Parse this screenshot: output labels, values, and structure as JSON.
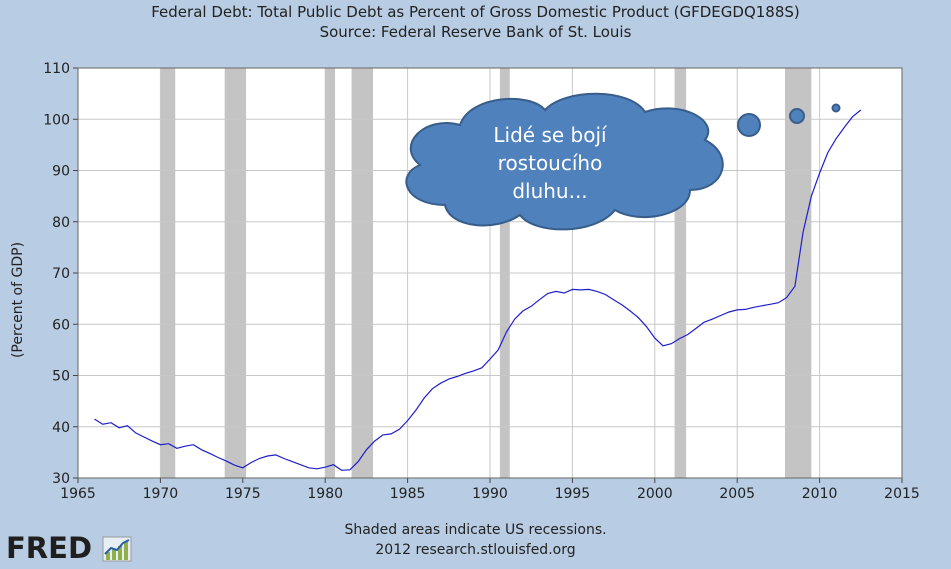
{
  "chart_data": {
    "type": "line",
    "title": "Federal Debt: Total Public Debt as Percent of Gross Domestic Product (GFDEGDQ188S)",
    "subtitle": "Source: Federal Reserve Bank of St. Louis",
    "ylabel": "(Percent of GDP)",
    "xlabel": "",
    "xlim": [
      1965,
      2015
    ],
    "ylim": [
      30,
      110
    ],
    "xticks": [
      1965,
      1970,
      1975,
      1980,
      1985,
      1990,
      1995,
      2000,
      2005,
      2010,
      2015
    ],
    "yticks": [
      30,
      40,
      50,
      60,
      70,
      80,
      90,
      100,
      110
    ],
    "grid": true,
    "line_color": "#1f1fcc",
    "recession_color": "#c4c4c4",
    "recessions": [
      [
        1970.0,
        1970.9
      ],
      [
        1973.9,
        1975.2
      ],
      [
        1980.0,
        1980.6
      ],
      [
        1981.6,
        1982.9
      ],
      [
        1990.6,
        1991.2
      ],
      [
        2001.2,
        2001.9
      ],
      [
        2007.9,
        2009.5
      ]
    ],
    "series": [
      {
        "x": [
          1966.0,
          1966.5,
          1967.0,
          1967.5,
          1968.0,
          1968.5,
          1969.0,
          1969.5,
          1970.0,
          1970.5,
          1971.0,
          1971.5,
          1972.0,
          1972.5,
          1973.0,
          1973.5,
          1974.0,
          1974.5,
          1975.0,
          1975.5,
          1976.0,
          1976.5,
          1977.0,
          1977.5,
          1978.0,
          1978.5,
          1979.0,
          1979.5,
          1980.0,
          1980.5,
          1981.0,
          1981.5,
          1982.0,
          1982.5,
          1983.0,
          1983.5,
          1984.0,
          1984.5,
          1985.0,
          1985.5,
          1986.0,
          1986.5,
          1987.0,
          1987.5,
          1988.0,
          1988.5,
          1989.0,
          1989.5,
          1990.0,
          1990.5,
          1991.0,
          1991.5,
          1992.0,
          1992.5,
          1993.0,
          1993.5,
          1994.0,
          1994.5,
          1995.0,
          1995.5,
          1996.0,
          1996.5,
          1997.0,
          1997.5,
          1998.0,
          1998.5,
          1999.0,
          1999.5,
          2000.0,
          2000.5,
          2001.0,
          2001.5,
          2002.0,
          2002.5,
          2003.0,
          2003.5,
          2004.0,
          2004.5,
          2005.0,
          2005.5,
          2006.0,
          2006.5,
          2007.0,
          2007.5,
          2008.0,
          2008.5,
          2009.0,
          2009.5,
          2010.0,
          2010.5,
          2011.0,
          2011.5,
          2012.0,
          2012.5
        ],
        "values": [
          41.5,
          40.5,
          40.8,
          39.8,
          40.2,
          38.8,
          38.0,
          37.2,
          36.5,
          36.7,
          35.8,
          36.2,
          36.5,
          35.5,
          34.8,
          34.0,
          33.3,
          32.5,
          32.0,
          33.0,
          33.8,
          34.3,
          34.5,
          33.8,
          33.2,
          32.6,
          32.0,
          31.8,
          32.1,
          32.6,
          31.5,
          31.6,
          33.2,
          35.5,
          37.2,
          38.4,
          38.6,
          39.5,
          41.2,
          43.2,
          45.6,
          47.4,
          48.5,
          49.3,
          49.8,
          50.4,
          50.9,
          51.5,
          53.2,
          55.0,
          58.5,
          61.0,
          62.6,
          63.5,
          64.8,
          66.0,
          66.4,
          66.1,
          66.8,
          66.7,
          66.8,
          66.4,
          65.8,
          64.8,
          63.8,
          62.6,
          61.3,
          59.5,
          57.3,
          55.8,
          56.2,
          57.2,
          58.0,
          59.2,
          60.4,
          61.0,
          61.7,
          62.4,
          62.8,
          62.9,
          63.3,
          63.6,
          63.9,
          64.2,
          65.2,
          67.4,
          78.0,
          85.0,
          89.5,
          93.5,
          96.2,
          98.4,
          100.5,
          101.8
        ]
      }
    ]
  },
  "bubble": {
    "text_line1": "Lidé se bojí",
    "text_line2": "rostoucího",
    "text_line3": "dluhu...",
    "fill": "#4f81bd",
    "stroke": "#385d8a"
  },
  "footer": {
    "line1": "Shaded areas indicate US recessions.",
    "line2": "2012 research.stlouisfed.org"
  },
  "logo": {
    "text": "FRED"
  }
}
